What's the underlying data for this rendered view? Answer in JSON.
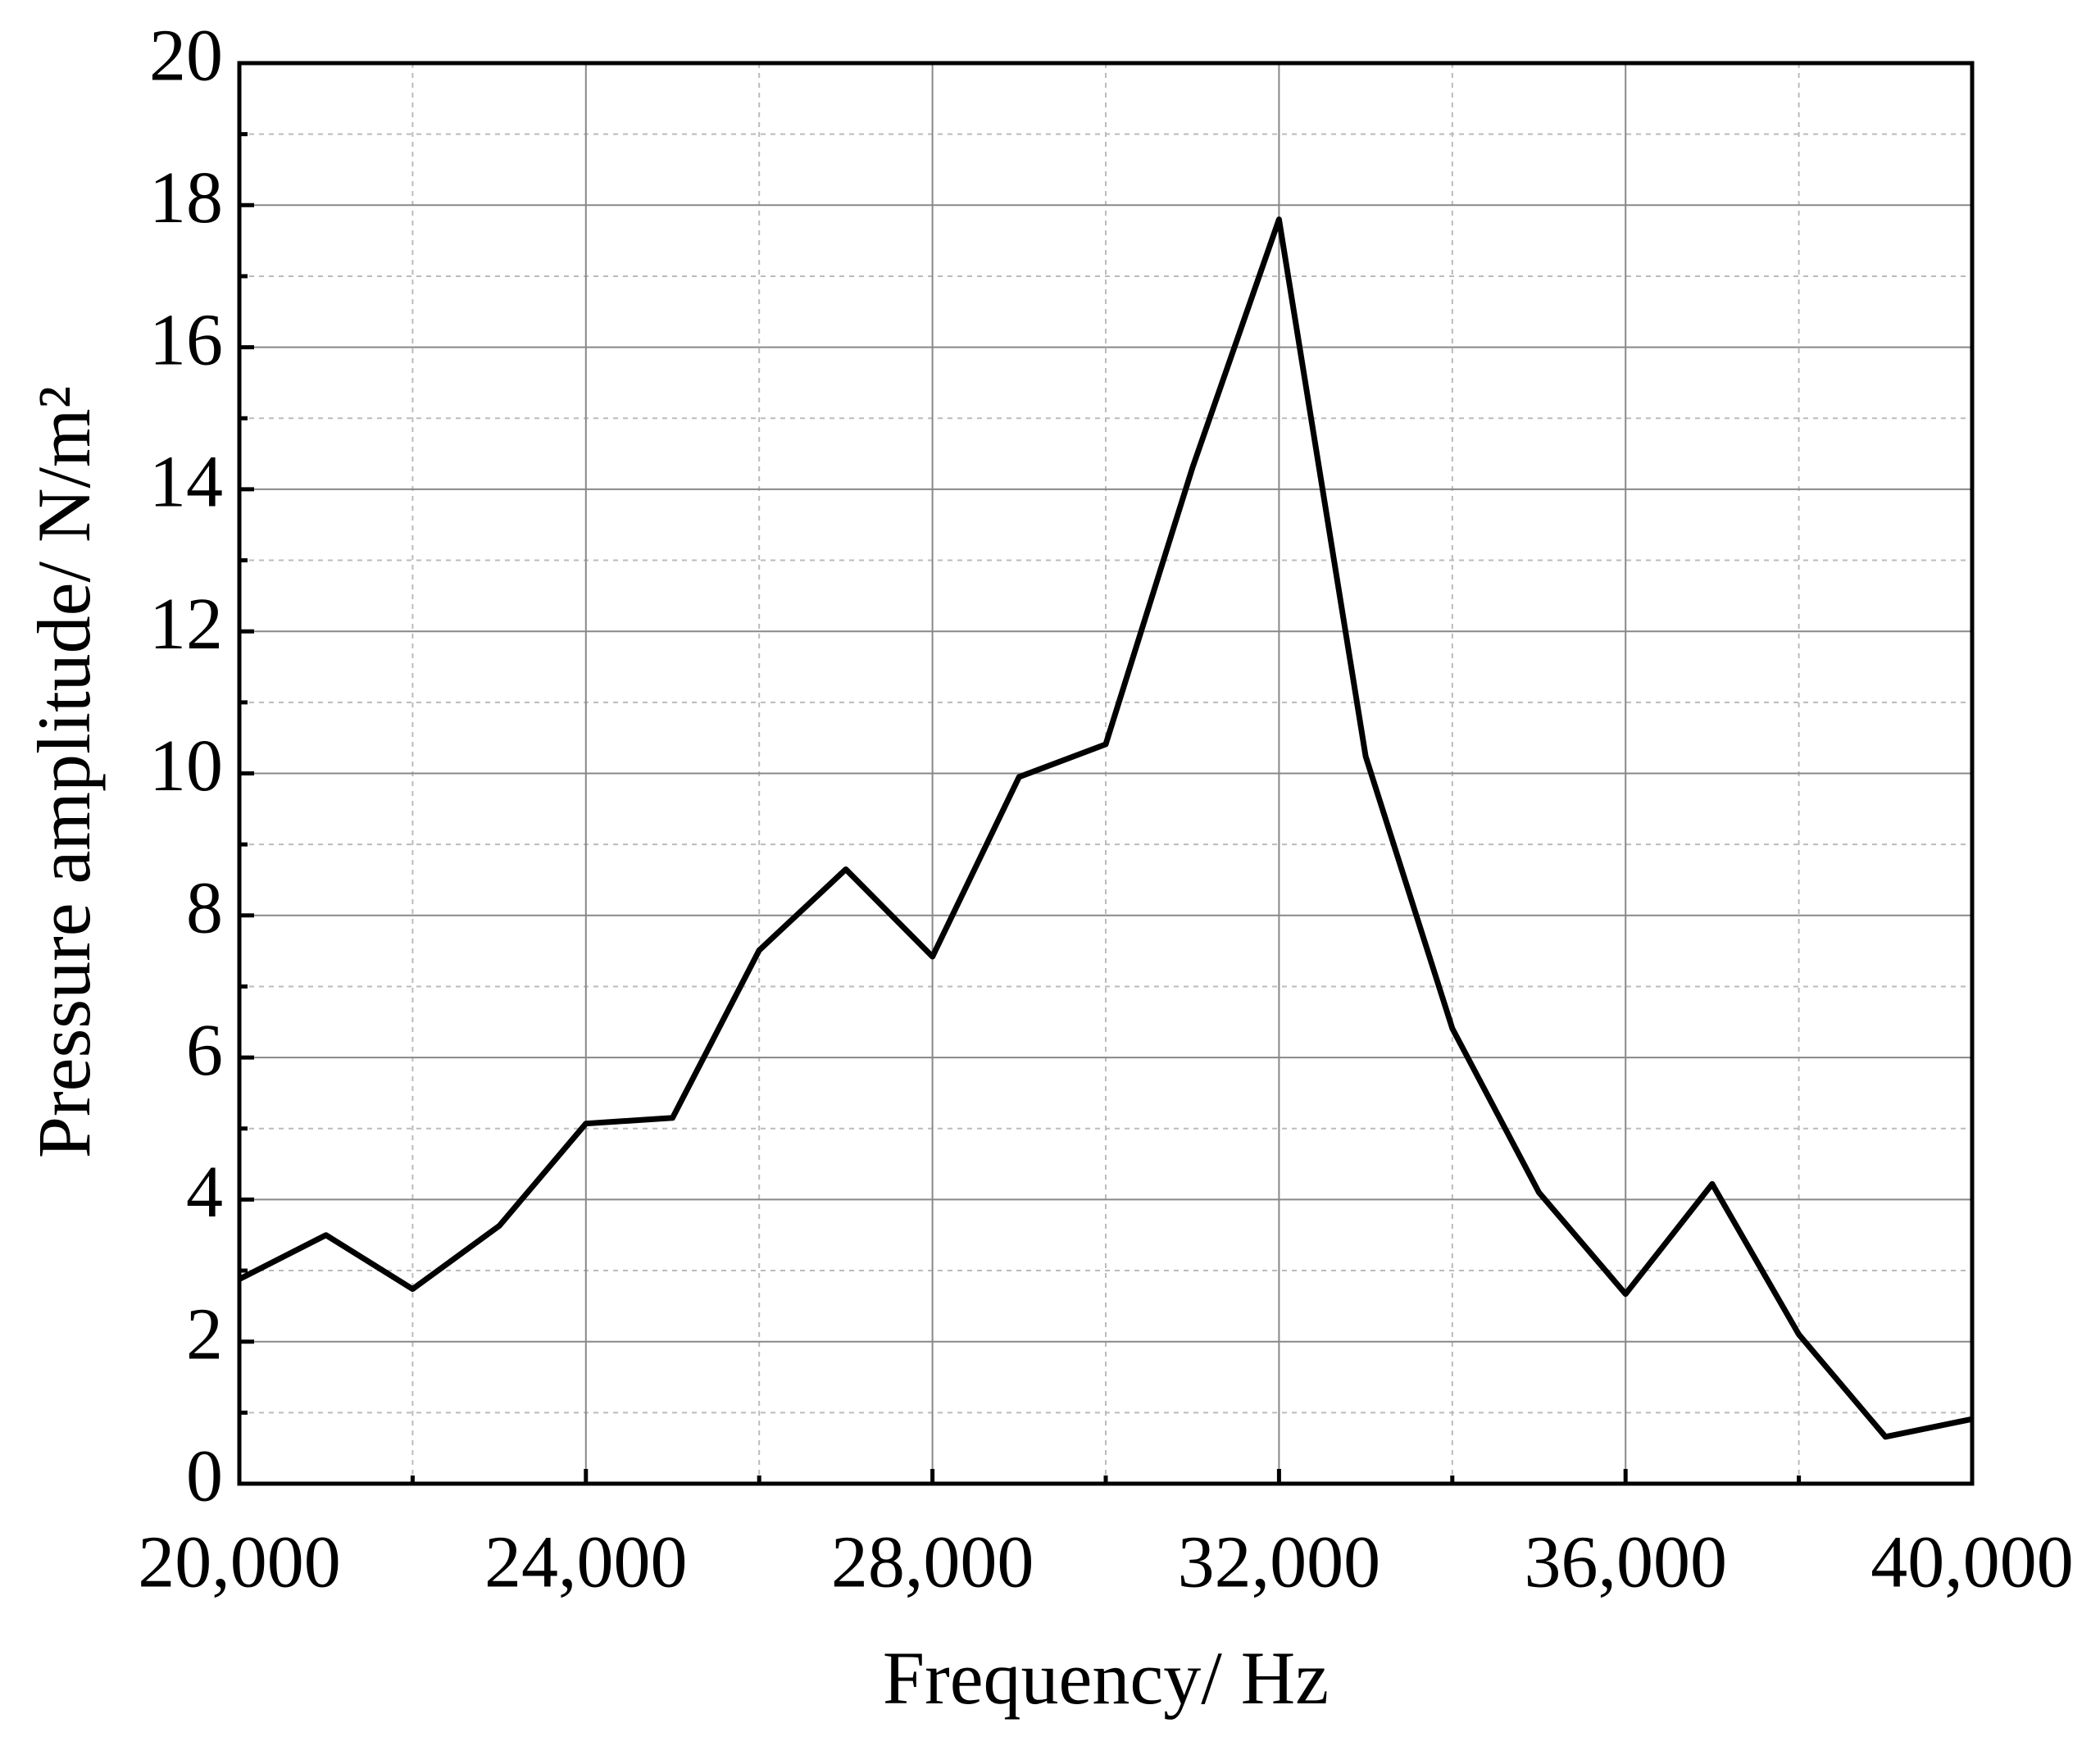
{
  "chart_data": {
    "type": "line",
    "x_label": "Frequency/ Hz",
    "y_label": "Pressure amplitude/ N/m²",
    "x": [
      20000,
      21000,
      22000,
      23000,
      24000,
      25000,
      26000,
      27000,
      28000,
      29000,
      30000,
      31000,
      32000,
      33000,
      34000,
      35000,
      36000,
      37000,
      38000,
      39000,
      40000
    ],
    "series": [
      {
        "color": "#000000",
        "values": [
          2.88,
          3.5,
          2.74,
          3.63,
          5.07,
          5.15,
          7.51,
          8.65,
          7.42,
          9.95,
          10.41,
          14.3,
          17.8,
          10.24,
          6.41,
          4.1,
          2.67,
          4.22,
          2.1,
          0.66,
          0.91
        ]
      }
    ],
    "xlim": [
      20000,
      40000
    ],
    "xticks": [
      {
        "value": 20000,
        "label": "20,000"
      },
      {
        "value": 24000,
        "label": "24,000"
      },
      {
        "value": 28000,
        "label": "28,000"
      },
      {
        "value": 32000,
        "label": "32,000"
      },
      {
        "value": 36000,
        "label": "36,000"
      },
      {
        "value": 40000,
        "label": "40,000"
      }
    ],
    "xminor": [
      22000,
      26000,
      30000,
      34000,
      38000
    ],
    "ylim": [
      0,
      20
    ],
    "yticks": [
      0,
      2,
      4,
      6,
      8,
      10,
      12,
      14,
      16,
      18,
      20
    ],
    "yminor": [
      1,
      3,
      5,
      7,
      9,
      11,
      13,
      15,
      17,
      19
    ],
    "grid": true
  }
}
